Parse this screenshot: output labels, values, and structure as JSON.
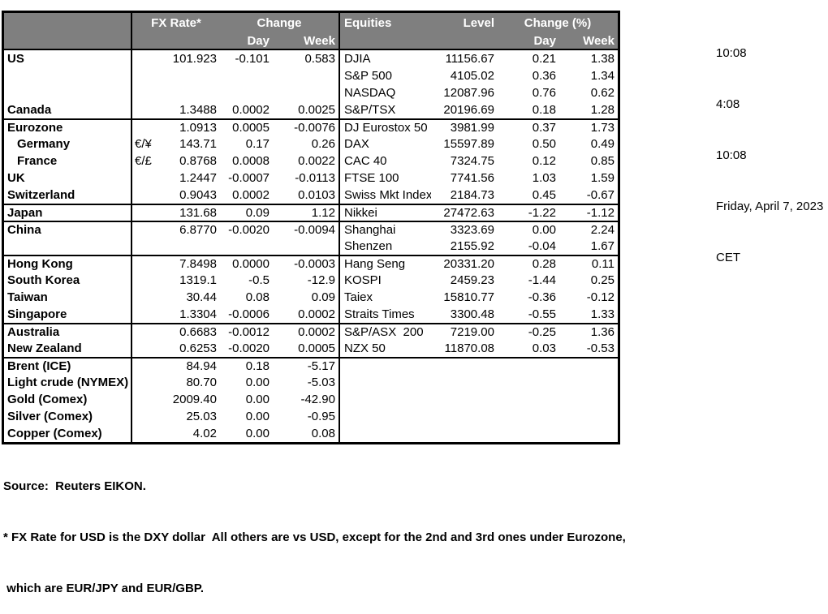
{
  "meta": {
    "timestamps": [
      "10:08",
      "4:08",
      "10:08",
      "Friday, April 7, 2023",
      "CET"
    ]
  },
  "colors": {
    "header_bg": "#7f7f7f",
    "header_text": "#ffffff",
    "border": "#000000"
  },
  "table": {
    "header": {
      "fx_rate": "FX Rate*",
      "fx_change": "Change",
      "day": "Day",
      "week": "Week",
      "equities": "Equities",
      "level": "Level",
      "eq_change": "Change (%)"
    },
    "rows": [
      {
        "country": "US",
        "indent": false,
        "pair": "",
        "fx": "101.923",
        "fx_day": "-0.101",
        "fx_week": "0.583",
        "equity": "DJIA",
        "level": "11156.67",
        "eq_day": "0.21",
        "eq_week": "1.38",
        "group": false
      },
      {
        "country": "",
        "indent": false,
        "pair": "",
        "fx": "",
        "fx_day": "",
        "fx_week": "",
        "equity": "S&P 500",
        "level": "4105.02",
        "eq_day": "0.36",
        "eq_week": "1.34",
        "group": false
      },
      {
        "country": "",
        "indent": false,
        "pair": "",
        "fx": "",
        "fx_day": "",
        "fx_week": "",
        "equity": "NASDAQ",
        "level": "12087.96",
        "eq_day": "0.76",
        "eq_week": "0.62",
        "group": false
      },
      {
        "country": "Canada",
        "indent": false,
        "pair": "",
        "fx": "1.3488",
        "fx_day": "0.0002",
        "fx_week": "0.0025",
        "equity": "S&P/TSX",
        "level": "20196.69",
        "eq_day": "0.18",
        "eq_week": "1.28",
        "group": false
      },
      {
        "country": "Eurozone",
        "indent": false,
        "pair": "",
        "fx": "1.0913",
        "fx_day": "0.0005",
        "fx_week": "-0.0076",
        "equity": "DJ Eurostox 50",
        "level": "3981.99",
        "eq_day": "0.37",
        "eq_week": "1.73",
        "group": true
      },
      {
        "country": "Germany",
        "indent": true,
        "pair": "€/¥",
        "fx": "143.71",
        "fx_day": "0.17",
        "fx_week": "0.26",
        "equity": "DAX",
        "level": "15597.89",
        "eq_day": "0.50",
        "eq_week": "0.49",
        "group": false
      },
      {
        "country": "France",
        "indent": true,
        "pair": "€/£",
        "fx": "0.8768",
        "fx_day": "0.0008",
        "fx_week": "0.0022",
        "equity": "CAC 40",
        "level": "7324.75",
        "eq_day": "0.12",
        "eq_week": "0.85",
        "group": false
      },
      {
        "country": "UK",
        "indent": false,
        "pair": "",
        "fx": "1.2447",
        "fx_day": "-0.0007",
        "fx_week": "-0.0113",
        "equity": "FTSE 100",
        "level": "7741.56",
        "eq_day": "1.03",
        "eq_week": "1.59",
        "group": false
      },
      {
        "country": "Switzerland",
        "indent": false,
        "pair": "",
        "fx": "0.9043",
        "fx_day": "0.0002",
        "fx_week": "0.0103",
        "equity": "Swiss Mkt Index",
        "level": "2184.73",
        "eq_day": "0.45",
        "eq_week": "-0.67",
        "group": false
      },
      {
        "country": "Japan",
        "indent": false,
        "pair": "",
        "fx": "131.68",
        "fx_day": "0.09",
        "fx_week": "1.12",
        "equity": "Nikkei",
        "level": "27472.63",
        "eq_day": "-1.22",
        "eq_week": "-1.12",
        "group": true
      },
      {
        "country": "China",
        "indent": false,
        "pair": "",
        "fx": "6.8770",
        "fx_day": "-0.0020",
        "fx_week": "-0.0094",
        "equity": "Shanghai",
        "level": "3323.69",
        "eq_day": "0.00",
        "eq_week": "2.24",
        "group": true
      },
      {
        "country": "",
        "indent": false,
        "pair": "",
        "fx": "",
        "fx_day": "",
        "fx_week": "",
        "equity": "Shenzen",
        "level": "2155.92",
        "eq_day": "-0.04",
        "eq_week": "1.67",
        "group": false
      },
      {
        "country": "Hong Kong",
        "indent": false,
        "pair": "",
        "fx": "7.8498",
        "fx_day": "0.0000",
        "fx_week": "-0.0003",
        "equity": "Hang Seng",
        "level": "20331.20",
        "eq_day": "0.28",
        "eq_week": "0.11",
        "group": true
      },
      {
        "country": "South Korea",
        "indent": false,
        "pair": "",
        "fx": "1319.1",
        "fx_day": "-0.5",
        "fx_week": "-12.9",
        "equity": "KOSPI",
        "level": "2459.23",
        "eq_day": "-1.44",
        "eq_week": "0.25",
        "group": false
      },
      {
        "country": "Taiwan",
        "indent": false,
        "pair": "",
        "fx": "30.44",
        "fx_day": "0.08",
        "fx_week": "0.09",
        "equity": "Taiex",
        "level": "15810.77",
        "eq_day": "-0.36",
        "eq_week": "-0.12",
        "group": false
      },
      {
        "country": "Singapore",
        "indent": false,
        "pair": "",
        "fx": "1.3304",
        "fx_day": "-0.0006",
        "fx_week": "0.0002",
        "equity": "Straits Times",
        "level": "3300.48",
        "eq_day": "-0.55",
        "eq_week": "1.33",
        "group": false
      },
      {
        "country": "Australia",
        "indent": false,
        "pair": "",
        "fx": "0.6683",
        "fx_day": "-0.0012",
        "fx_week": "0.0002",
        "equity": "S&P/ASX  200",
        "level": "7219.00",
        "eq_day": "-0.25",
        "eq_week": "1.36",
        "group": true
      },
      {
        "country": "New Zealand",
        "indent": false,
        "pair": "",
        "fx": "0.6253",
        "fx_day": "-0.0020",
        "fx_week": "0.0005",
        "equity": "NZX 50",
        "level": "11870.08",
        "eq_day": "0.03",
        "eq_week": "-0.53",
        "group": false
      },
      {
        "country": "Brent (ICE)",
        "indent": false,
        "pair": "",
        "fx": "84.94",
        "fx_day": "0.18",
        "fx_week": "-5.17",
        "equity": "",
        "level": "",
        "eq_day": "",
        "eq_week": "",
        "group": true
      },
      {
        "country": "Light crude (NYMEX)",
        "indent": false,
        "pair": "",
        "fx": "80.70",
        "fx_day": "0.00",
        "fx_week": "-5.03",
        "equity": "",
        "level": "",
        "eq_day": "",
        "eq_week": "",
        "group": false
      },
      {
        "country": "Gold (Comex)",
        "indent": false,
        "pair": "",
        "fx": "2009.40",
        "fx_day": "0.00",
        "fx_week": "-42.90",
        "equity": "",
        "level": "",
        "eq_day": "",
        "eq_week": "",
        "group": false
      },
      {
        "country": "Silver (Comex)",
        "indent": false,
        "pair": "",
        "fx": "25.03",
        "fx_day": "0.00",
        "fx_week": "-0.95",
        "equity": "",
        "level": "",
        "eq_day": "",
        "eq_week": "",
        "group": false
      },
      {
        "country": "Copper (Comex)",
        "indent": false,
        "pair": "",
        "fx": "4.02",
        "fx_day": "0.00",
        "fx_week": "0.08",
        "equity": "",
        "level": "",
        "eq_day": "",
        "eq_week": "",
        "group": false
      }
    ]
  },
  "footer": {
    "source": "Source:  Reuters EIKON.",
    "note1": "* FX Rate for USD is the DXY dollar  All others are vs USD, except for the 2nd and 3rd ones under Eurozone,",
    "note2": " which are EUR/JPY and EUR/GBP."
  }
}
